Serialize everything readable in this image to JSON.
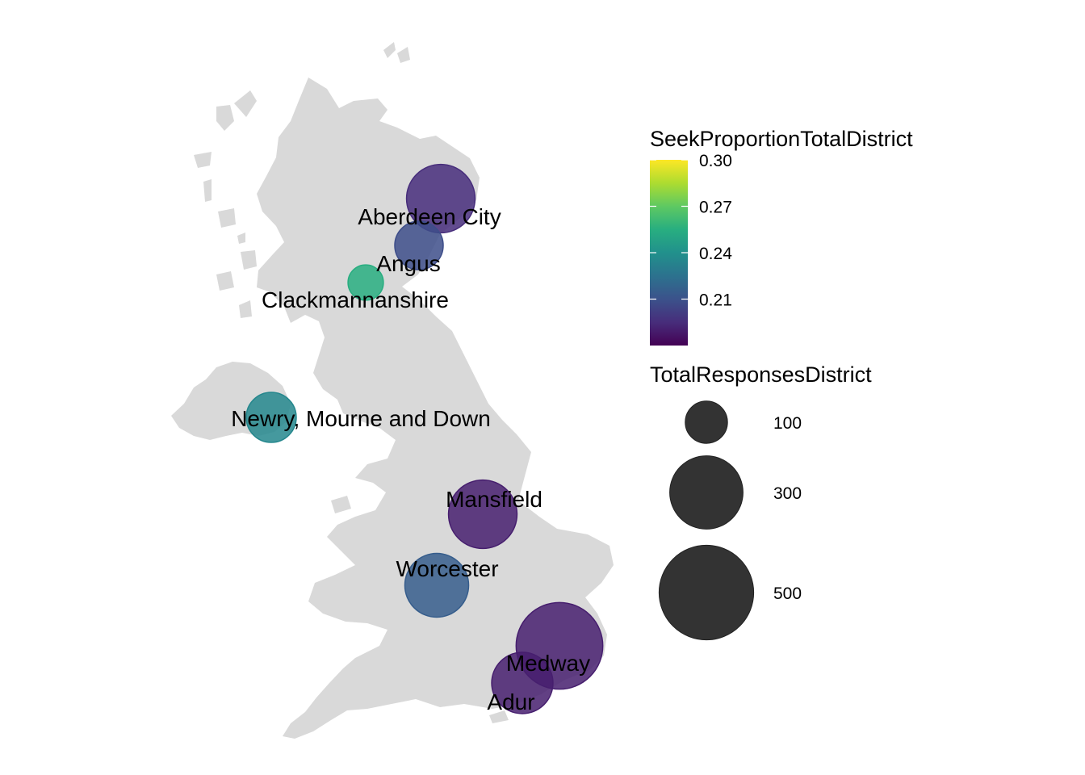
{
  "map": {
    "districts": [
      {
        "name": "Aberdeen City",
        "responses": 300,
        "seek_proportion": 0.195
      },
      {
        "name": "Angus",
        "responses": 150,
        "seek_proportion": 0.208
      },
      {
        "name": "Clackmannanshire",
        "responses": 80,
        "seek_proportion": 0.255
      },
      {
        "name": "Newry, Mourne and Down",
        "responses": 160,
        "seek_proportion": 0.235
      },
      {
        "name": "Mansfield",
        "responses": 300,
        "seek_proportion": 0.19
      },
      {
        "name": "Worcester",
        "responses": 260,
        "seek_proportion": 0.215
      },
      {
        "name": "Medway",
        "responses": 480,
        "seek_proportion": 0.19
      },
      {
        "name": "Adur",
        "responses": 240,
        "seek_proportion": 0.19
      }
    ]
  },
  "legend": {
    "color": {
      "title": "SeekProportionTotalDistrict",
      "min": 0.18,
      "max": 0.3,
      "ticks": [
        {
          "value": 0.3,
          "label": "0.30"
        },
        {
          "value": 0.27,
          "label": "0.27"
        },
        {
          "value": 0.24,
          "label": "0.24"
        },
        {
          "value": 0.21,
          "label": "0.21"
        }
      ],
      "palette": [
        "#440154",
        "#472d7b",
        "#3b528b",
        "#2c728e",
        "#21918c",
        "#28ae80",
        "#5ec962",
        "#addc30",
        "#fde725"
      ]
    },
    "size": {
      "title": "TotalResponsesDistrict",
      "entries": [
        {
          "value": 100,
          "label": "100"
        },
        {
          "value": 300,
          "label": "300"
        },
        {
          "value": 500,
          "label": "500"
        }
      ],
      "color": "#333333"
    }
  },
  "land_color": "#d9d9d9"
}
